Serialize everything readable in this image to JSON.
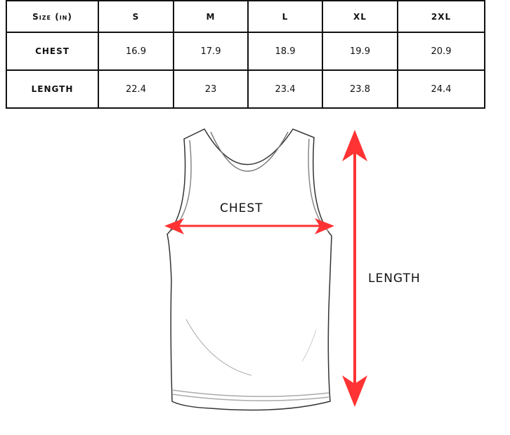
{
  "table": {
    "header": [
      "Size (in)",
      "S",
      "M",
      "L",
      "XL",
      "2XL"
    ],
    "rows": [
      {
        "label": "CHEST",
        "values": [
          "16.9",
          "17.9",
          "18.9",
          "19.9",
          "20.9"
        ]
      },
      {
        "label": "LENGTH",
        "values": [
          "22.4",
          "23",
          "23.4",
          "23.8",
          "24.4"
        ]
      }
    ]
  },
  "diagram": {
    "chest_label": "CHEST",
    "length_label": "LENGTH",
    "arrow_color": "#ff3333",
    "garment_icon": "tank-top-outline"
  }
}
